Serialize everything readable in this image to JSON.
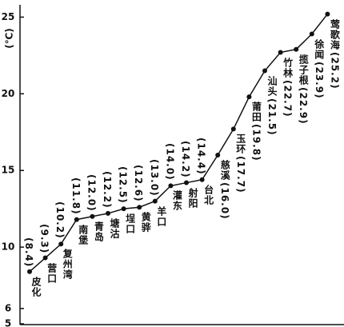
{
  "chart_data": {
    "type": "line",
    "y_label": "(℃)",
    "categories": [
      "皮化",
      "营口",
      "复州湾",
      "南堡",
      "青岛",
      "塘沽",
      "埕口",
      "黄骅",
      "羊口",
      "灌东",
      "射阳",
      "台北",
      "慈溪",
      "玉环",
      "莆田",
      "汕头",
      "竹林",
      "揽子根",
      "徐闻",
      "莺歌海"
    ],
    "values": [
      8.4,
      9.3,
      10.2,
      11.8,
      12.0,
      12.2,
      12.5,
      12.6,
      13.0,
      14.0,
      14.2,
      14.4,
      16.0,
      17.7,
      19.8,
      21.5,
      22.7,
      22.9,
      23.9,
      25.2
    ],
    "value_labels": [
      "(8.4)",
      "(9.3)",
      "(10.2)",
      "(11.8)",
      "(12.0)",
      "(12.2)",
      "(12.5)",
      "(12.6)",
      "(13.0)",
      "(14.0)",
      "(14.2)",
      "(14.4)",
      "(16.0)",
      "(17.7)",
      "(19.8)",
      "(21.5)",
      "(22.7)",
      "(22.9)",
      "(23.9)",
      "(25.2)"
    ],
    "color": "#111111",
    "ylim": [
      5,
      25.7
    ],
    "yticks": [
      5,
      6,
      10,
      15,
      20,
      25
    ]
  }
}
